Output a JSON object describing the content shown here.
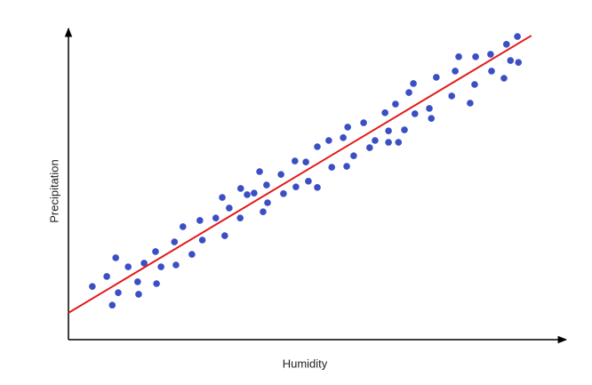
{
  "chart_data": {
    "type": "scatter",
    "x_label": "Humidity",
    "y_label": "Precipitation",
    "xlim": [
      0,
      100
    ],
    "ylim": [
      0,
      100
    ],
    "color": "#3a4fc4",
    "x": [
      4.8,
      7.7,
      9.5,
      8.8,
      10.0,
      12.0,
      13.9,
      14.1,
      15.2,
      17.5,
      17.7,
      18.6,
      21.3,
      21.6,
      23.0,
      24.8,
      26.4,
      26.9,
      29.6,
      30.9,
      31.4,
      32.3,
      34.5,
      34.6,
      35.9,
      37.3,
      38.4,
      39.1,
      39.8,
      40.0,
      42.7,
      43.2,
      45.5,
      45.7,
      47.7,
      48.2,
      50.0,
      50.0,
      52.3,
      52.9,
      55.2,
      55.9,
      56.1,
      57.3,
      59.3,
      60.5,
      61.6,
      63.6,
      64.3,
      64.3,
      65.7,
      66.3,
      67.5,
      68.4,
      69.3,
      69.6,
      72.5,
      72.9,
      73.9,
      77.0,
      77.7,
      78.4,
      80.7,
      81.6,
      81.8,
      84.8,
      85.0,
      87.5,
      88.0,
      88.8,
      90.2,
      90.4
    ],
    "values": [
      17.1,
      20.3,
      26.3,
      11.1,
      15.1,
      23.4,
      18.6,
      14.6,
      24.6,
      28.3,
      18.0,
      23.4,
      31.4,
      24.0,
      36.3,
      27.4,
      38.3,
      32.0,
      39.1,
      45.7,
      33.4,
      42.3,
      39.1,
      48.6,
      46.6,
      47.1,
      54.0,
      41.1,
      49.7,
      44.0,
      53.1,
      46.9,
      57.4,
      49.1,
      57.1,
      50.9,
      62.0,
      48.9,
      64.0,
      55.4,
      64.9,
      55.7,
      68.3,
      59.1,
      69.7,
      61.7,
      64.0,
      72.9,
      67.1,
      63.4,
      75.7,
      63.4,
      67.4,
      79.4,
      82.3,
      72.6,
      74.3,
      71.1,
      84.3,
      78.3,
      86.3,
      90.9,
      76.0,
      82.0,
      90.9,
      91.7,
      86.3,
      84.0,
      94.9,
      89.7,
      97.4,
      89.1
    ],
    "trend_line": {
      "x": [
        0,
        93.0
      ],
      "values": [
        8.6,
        97.7
      ],
      "color": "#e31b1b"
    }
  }
}
